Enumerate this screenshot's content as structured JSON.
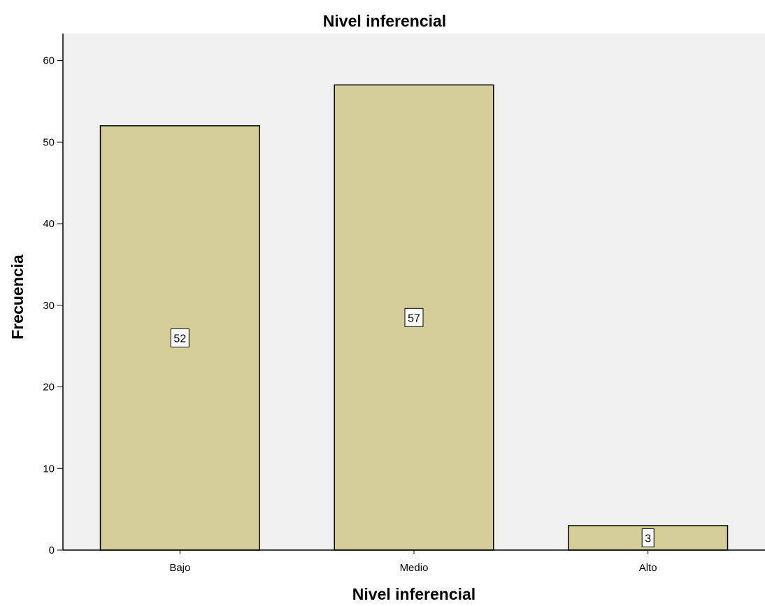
{
  "chart_data": {
    "type": "bar",
    "title": "Nivel inferencial",
    "xlabel": "Nivel inferencial",
    "ylabel": "Frecuencia",
    "categories": [
      "Bajo",
      "Medio",
      "Alto"
    ],
    "values": [
      52,
      57,
      3
    ],
    "data_labels": [
      "52",
      "57",
      "3"
    ],
    "ylim": [
      0,
      63.3
    ],
    "yticks": [
      0,
      10,
      20,
      30,
      40,
      50,
      60
    ],
    "grid": false,
    "legend": "none",
    "colors": {
      "bar_fill": "#d4cf99",
      "bar_stroke": "#000000",
      "plot_background": "#f0f0f0",
      "label_box": "#ffffff"
    }
  }
}
